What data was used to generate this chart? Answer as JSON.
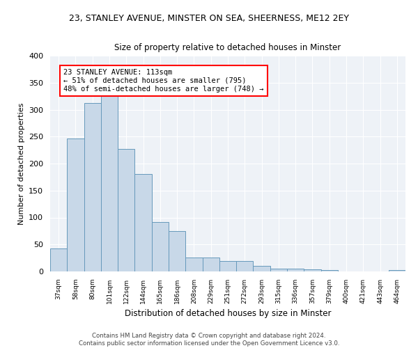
{
  "title_line1": "23, STANLEY AVENUE, MINSTER ON SEA, SHEERNESS, ME12 2EY",
  "title_line2": "Size of property relative to detached houses in Minster",
  "xlabel": "Distribution of detached houses by size in Minster",
  "ylabel": "Number of detached properties",
  "categories": [
    "37sqm",
    "58sqm",
    "80sqm",
    "101sqm",
    "122sqm",
    "144sqm",
    "165sqm",
    "186sqm",
    "208sqm",
    "229sqm",
    "251sqm",
    "272sqm",
    "293sqm",
    "315sqm",
    "336sqm",
    "357sqm",
    "379sqm",
    "400sqm",
    "421sqm",
    "443sqm",
    "464sqm"
  ],
  "values": [
    42,
    247,
    312,
    335,
    227,
    181,
    91,
    75,
    26,
    26,
    19,
    19,
    10,
    5,
    5,
    4,
    2,
    0,
    0,
    0,
    2
  ],
  "bar_color": "#c8d8e8",
  "bar_edge_color": "#6699bb",
  "annotation_text": "23 STANLEY AVENUE: 113sqm\n← 51% of detached houses are smaller (795)\n48% of semi-detached houses are larger (748) →",
  "annotation_box_color": "white",
  "annotation_box_edge_color": "red",
  "footer_line1": "Contains HM Land Registry data © Crown copyright and database right 2024.",
  "footer_line2": "Contains public sector information licensed under the Open Government Licence v3.0.",
  "bg_color": "#eef2f7",
  "ylim": [
    0,
    400
  ],
  "yticks": [
    0,
    50,
    100,
    150,
    200,
    250,
    300,
    350,
    400
  ]
}
